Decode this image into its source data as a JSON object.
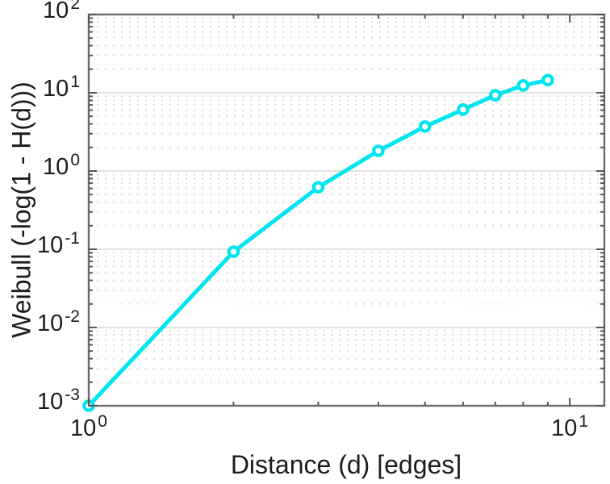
{
  "chart_data": {
    "type": "line",
    "title": "",
    "xlabel": "Distance (d) [edges]",
    "ylabel": "Weibull (-log(1 - H(d)))",
    "x": [
      1,
      2,
      3,
      4,
      5,
      6,
      7,
      8,
      9
    ],
    "y": [
      0.001,
      0.093,
      0.62,
      1.81,
      3.7,
      6.1,
      9.3,
      12.4,
      14.5
    ],
    "xscale": "log",
    "yscale": "log",
    "xlim": [
      1,
      11.8
    ],
    "ylim": [
      0.001,
      100
    ],
    "tick_base": "10",
    "x_tick_exponents": [
      0,
      1
    ],
    "y_tick_exponents": [
      2,
      1,
      0,
      -1,
      -2,
      -3
    ],
    "minor_mantissas": [
      2,
      3,
      4,
      5,
      6,
      7,
      8,
      9
    ],
    "grid": {
      "major": "solid",
      "minor": "dotted",
      "direction": "horizontal-only"
    },
    "legend": null,
    "colors": {
      "line": "#00e5ee",
      "marker_fill": "#ffffff",
      "axis": "#6b6b6b",
      "tick": "#565656",
      "major_grid": "#e2e2e2",
      "minor_grid": "#dfdfdf",
      "text": "#1c1c1c",
      "background": "#ffffff"
    }
  }
}
